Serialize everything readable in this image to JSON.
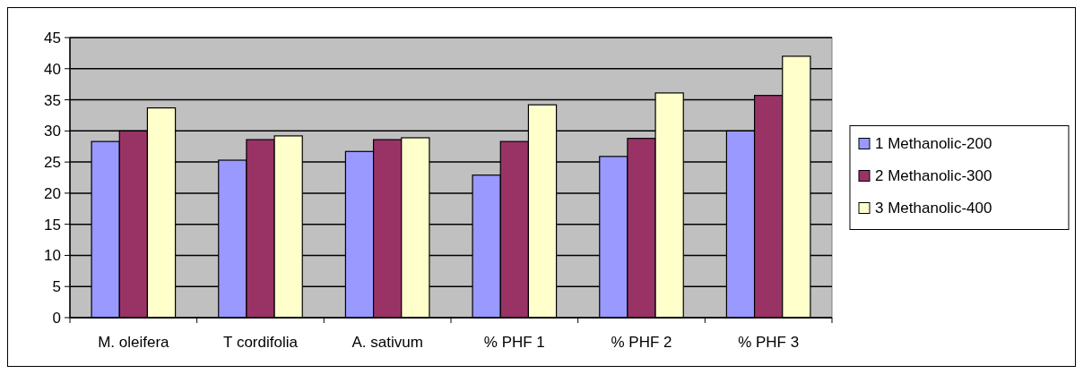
{
  "chart_data": {
    "type": "bar",
    "categories": [
      "M. oleifera",
      "T cordifolia",
      "A. sativum",
      "% PHF 1",
      "% PHF 2",
      "% PHF 3"
    ],
    "series": [
      {
        "name": "1 Methanolic-200",
        "color": "#9999ff",
        "values": [
          28.3,
          25.3,
          26.7,
          22.9,
          25.9,
          30.0
        ]
      },
      {
        "name": "2 Methanolic-300",
        "color": "#993366",
        "values": [
          30.0,
          28.6,
          28.6,
          28.3,
          28.8,
          35.7
        ]
      },
      {
        "name": "3 Methanolic-400",
        "color": "#ffffcc",
        "values": [
          33.7,
          29.2,
          28.9,
          34.2,
          36.1,
          42.0
        ]
      }
    ],
    "ylim": [
      0,
      45
    ],
    "yticks": [
      0,
      5,
      10,
      15,
      20,
      25,
      30,
      35,
      40,
      45
    ],
    "grid": "y",
    "legend": "right"
  }
}
